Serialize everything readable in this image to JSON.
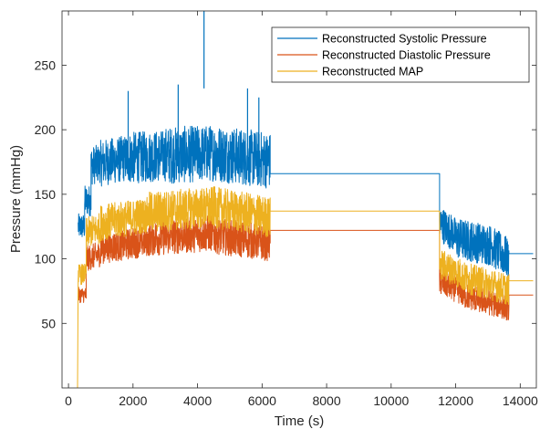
{
  "chart_data": {
    "type": "line",
    "title": "",
    "xlabel": "Time (s)",
    "ylabel": "Pressure (mmHg)",
    "xlim": [
      -200,
      14500
    ],
    "ylim": [
      0,
      292
    ],
    "xticks": [
      0,
      2000,
      4000,
      6000,
      8000,
      10000,
      12000,
      14000
    ],
    "yticks": [
      50,
      100,
      150,
      200,
      250
    ],
    "grid": false,
    "legend_position": "top-right",
    "series": [
      {
        "name": "Reconstructed Systolic Pressure",
        "color": "#0072BD",
        "segments": [
          {
            "x": [
              300,
              500
            ],
            "y": [
              125,
              125
            ],
            "noise": 10
          },
          {
            "x": [
              500,
              700
            ],
            "y": [
              145,
              145
            ],
            "noise": 12
          },
          {
            "x": [
              700,
              1000
            ],
            "y": [
              172,
              174
            ],
            "noise": 15
          },
          {
            "x": [
              1000,
              1800
            ],
            "y": [
              174,
              178
            ],
            "noise": 18
          },
          {
            "x": [
              1800,
              3000
            ],
            "y": [
              178,
              180
            ],
            "noise": 20
          },
          {
            "x": [
              3000,
              4500
            ],
            "y": [
              180,
              182
            ],
            "noise": 22
          },
          {
            "x": [
              4500,
              6250
            ],
            "y": [
              182,
              176
            ],
            "noise": 22
          },
          {
            "x": [
              6250,
              11500
            ],
            "y": [
              166,
              166
            ],
            "noise": 0
          },
          {
            "x": [
              11500,
              12000
            ],
            "y": [
              128,
              118
            ],
            "noise": 14
          },
          {
            "x": [
              12000,
              13200
            ],
            "y": [
              116,
              110
            ],
            "noise": 16
          },
          {
            "x": [
              13200,
              13650
            ],
            "y": [
              108,
              100
            ],
            "noise": 16
          },
          {
            "x": [
              13650,
              14400
            ],
            "y": [
              104,
              104
            ],
            "noise": 0
          }
        ],
        "spikes": [
          [
            4200,
            292
          ],
          [
            1850,
            230
          ],
          [
            3400,
            235
          ],
          [
            5550,
            232
          ],
          [
            5900,
            225
          ]
        ]
      },
      {
        "name": "Reconstructed Diastolic Pressure",
        "color": "#D95319",
        "segments": [
          {
            "x": [
              300,
              550
            ],
            "y": [
              72,
              72
            ],
            "noise": 6
          },
          {
            "x": [
              550,
              1000
            ],
            "y": [
              100,
              104
            ],
            "noise": 10
          },
          {
            "x": [
              1000,
              2500
            ],
            "y": [
              108,
              114
            ],
            "noise": 12
          },
          {
            "x": [
              2500,
              4500
            ],
            "y": [
              116,
              120
            ],
            "noise": 14
          },
          {
            "x": [
              4500,
              6250
            ],
            "y": [
              118,
              112
            ],
            "noise": 14
          },
          {
            "x": [
              6250,
              11500
            ],
            "y": [
              122,
              122
            ],
            "noise": 0
          },
          {
            "x": [
              11500,
              12200
            ],
            "y": [
              82,
              74
            ],
            "noise": 10
          },
          {
            "x": [
              12200,
              13650
            ],
            "y": [
              72,
              62
            ],
            "noise": 10
          },
          {
            "x": [
              13650,
              14400
            ],
            "y": [
              72,
              72
            ],
            "noise": 0
          }
        ],
        "spikes": []
      },
      {
        "name": "Reconstructed MAP",
        "color": "#EDB120",
        "segments": [
          {
            "x": [
              280,
              300
            ],
            "y": [
              0,
              85
            ],
            "noise": 0
          },
          {
            "x": [
              300,
              550
            ],
            "y": [
              88,
              88
            ],
            "noise": 8
          },
          {
            "x": [
              550,
              1000
            ],
            "y": [
              120,
              124
            ],
            "noise": 12
          },
          {
            "x": [
              1000,
              2500
            ],
            "y": [
              128,
              134
            ],
            "noise": 14
          },
          {
            "x": [
              2500,
              4500
            ],
            "y": [
              136,
              140
            ],
            "noise": 16
          },
          {
            "x": [
              4500,
              6250
            ],
            "y": [
              140,
              132
            ],
            "noise": 16
          },
          {
            "x": [
              6250,
              11500
            ],
            "y": [
              137,
              137
            ],
            "noise": 0
          },
          {
            "x": [
              11500,
              12200
            ],
            "y": [
              96,
              88
            ],
            "noise": 12
          },
          {
            "x": [
              12200,
              13650
            ],
            "y": [
              86,
              76
            ],
            "noise": 12
          },
          {
            "x": [
              13650,
              14400
            ],
            "y": [
              83,
              83
            ],
            "noise": 0
          }
        ],
        "spikes": []
      }
    ]
  }
}
